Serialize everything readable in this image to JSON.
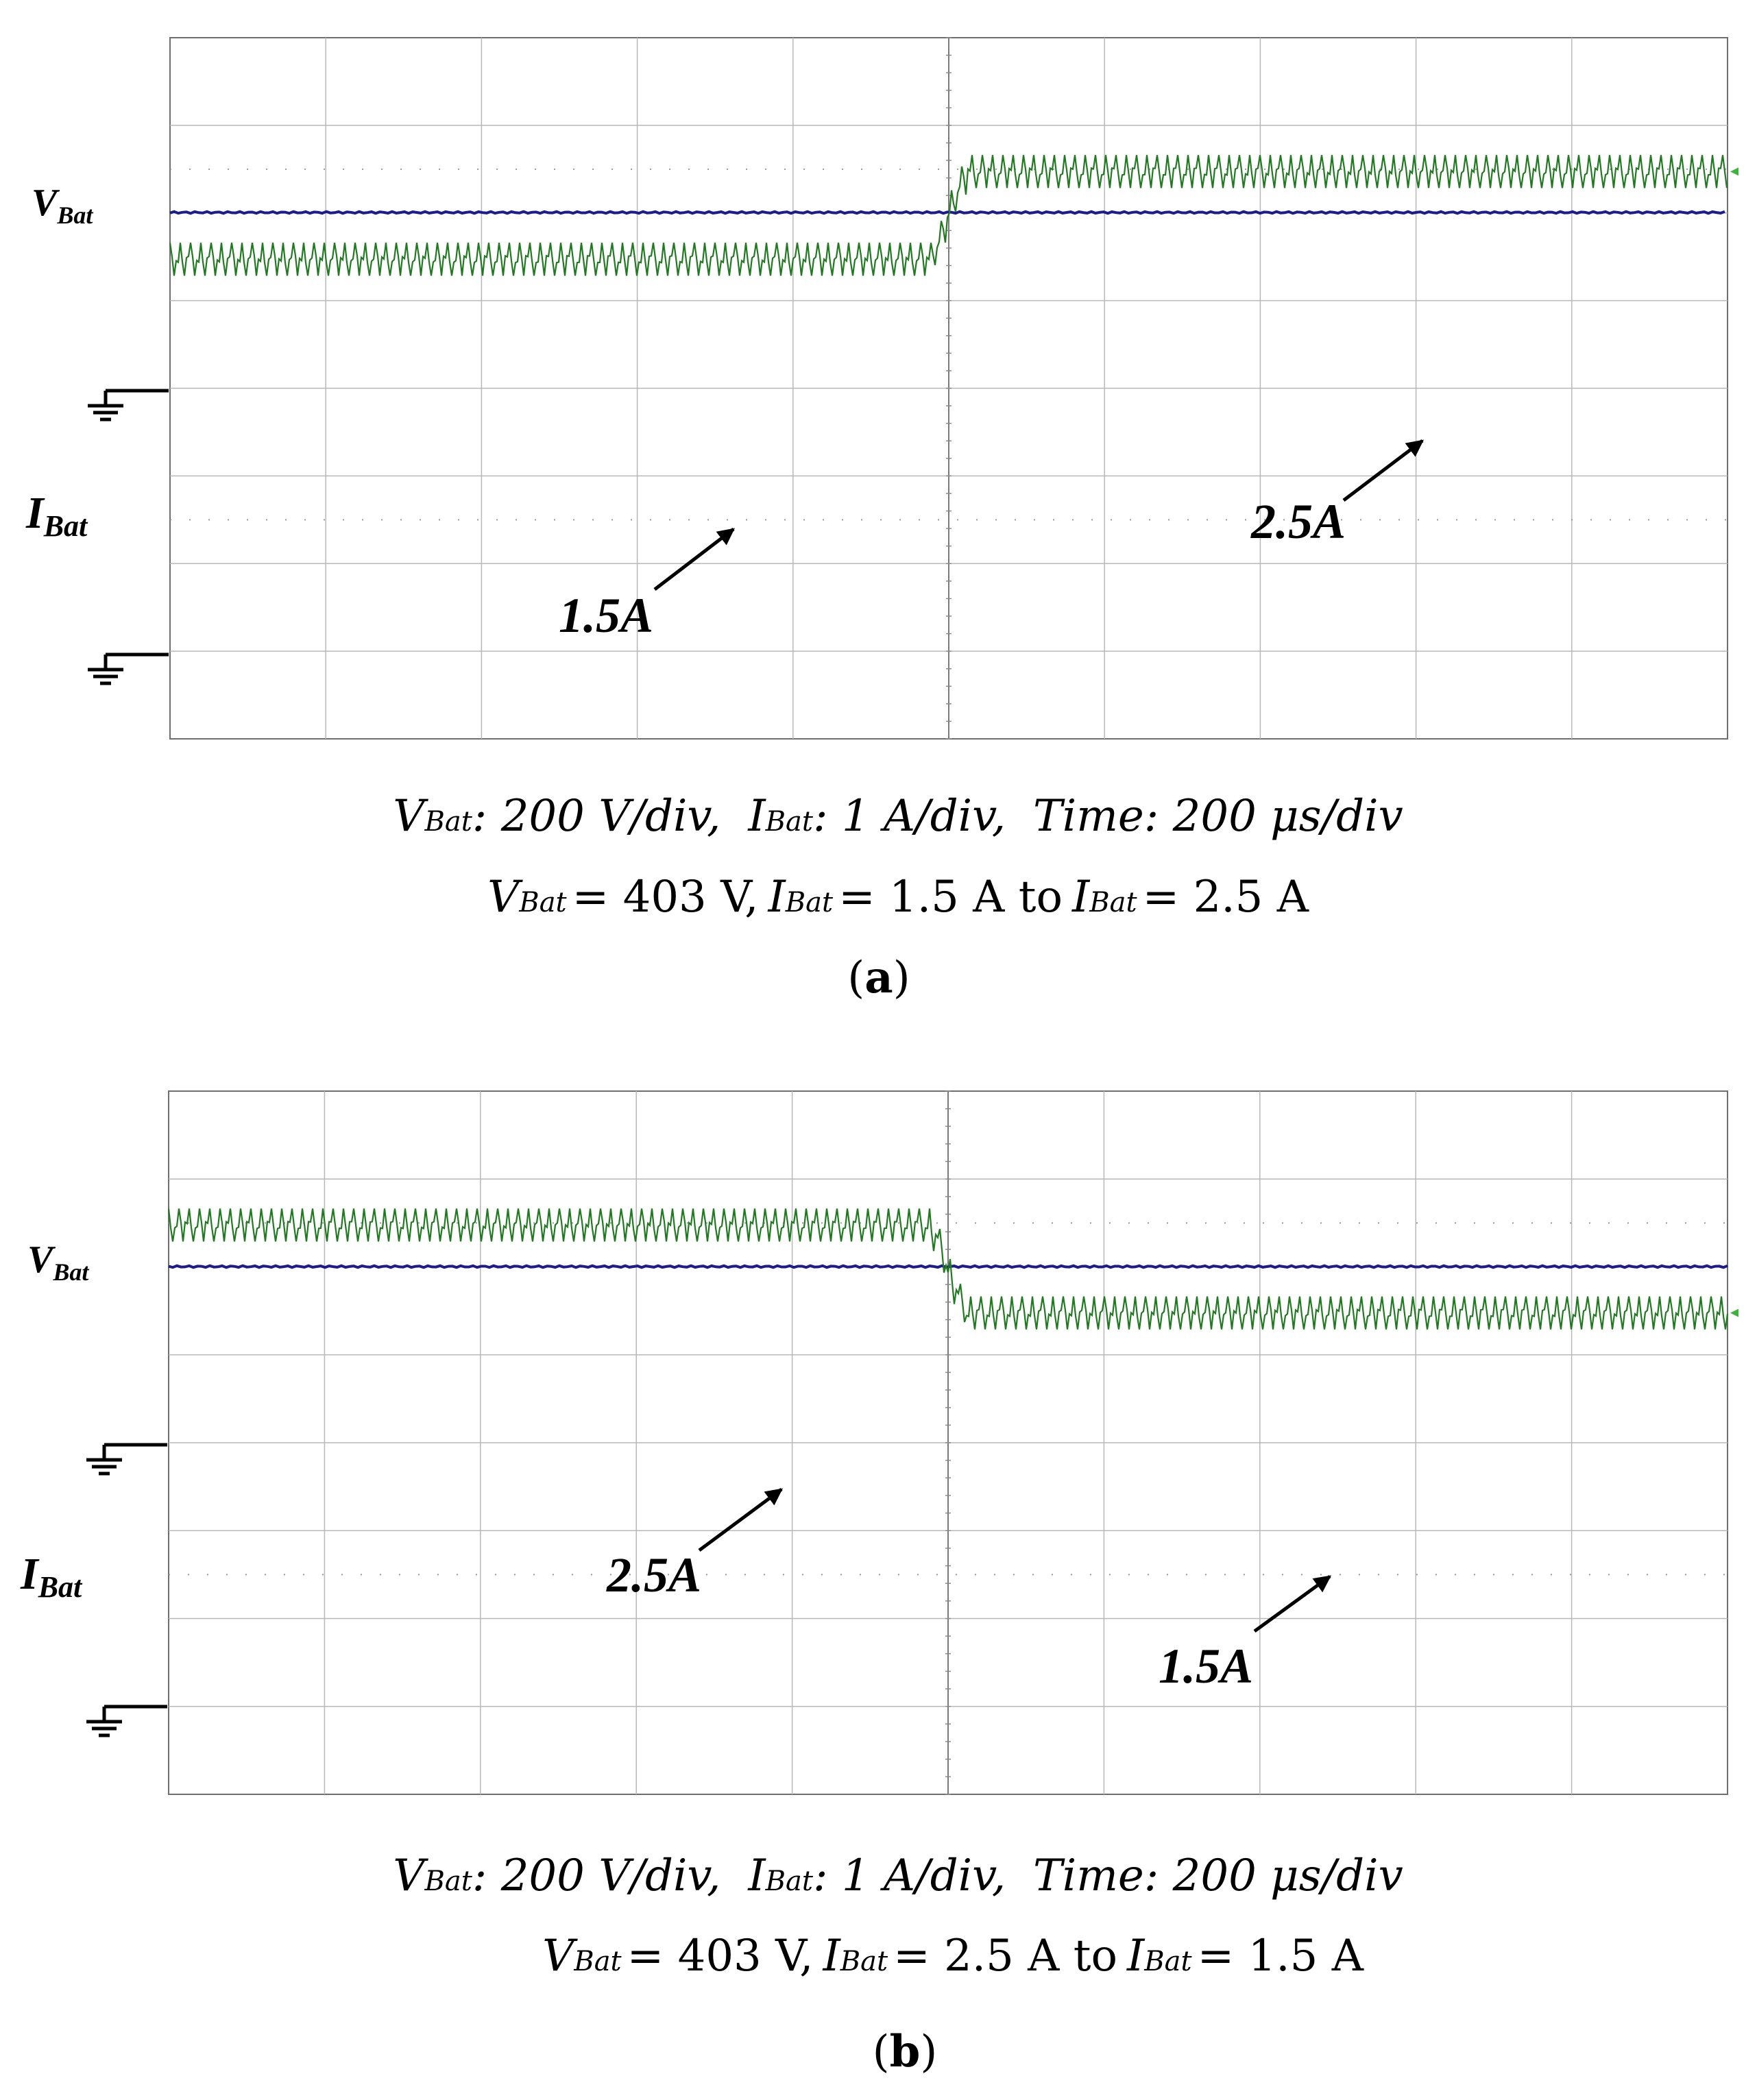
{
  "chart_data": [
    {
      "type": "line",
      "panel_label": "a",
      "channels": [
        {
          "name": "V",
          "sub": "Bat",
          "color": "#1c1c8c",
          "value": 403,
          "unit": "V",
          "scale": "200 V/div"
        },
        {
          "name": "I",
          "sub": "Bat",
          "color": "#217a21",
          "unit": "A",
          "scale": "1 A/div"
        }
      ],
      "divisions": {
        "x": 10,
        "y": 8
      },
      "time_div": "200 μs/div",
      "current_series": {
        "before": 1.5,
        "after": 2.5,
        "step_time_div": 5
      },
      "annotations": [
        {
          "label": "1.5A",
          "target": "before"
        },
        {
          "label": "2.5A",
          "target": "after"
        }
      ],
      "scale_line": {
        "v_name": "V",
        "v_sub": "Bat",
        "v_text": ": 200 V/div,",
        "i_name": "I",
        "i_sub": "Bat",
        "i_text": ": 1 A/div,",
        "time_text": "Time: 200 μs/div"
      },
      "condition_line": {
        "v_eq": "= 403 V,",
        "i1_eq": "= 1.5 A to",
        "i2_eq": "= 2.5 A"
      },
      "caption": {
        "open": "(",
        "letter": "a",
        "close": ")"
      }
    },
    {
      "type": "line",
      "panel_label": "b",
      "channels": [
        {
          "name": "V",
          "sub": "Bat",
          "color": "#1c1c8c",
          "value": 403,
          "unit": "V",
          "scale": "200 V/div"
        },
        {
          "name": "I",
          "sub": "Bat",
          "color": "#217a21",
          "unit": "A",
          "scale": "1 A/div"
        }
      ],
      "divisions": {
        "x": 10,
        "y": 8
      },
      "time_div": "200 μs/div",
      "current_series": {
        "before": 2.5,
        "after": 1.5,
        "step_time_div": 5
      },
      "annotations": [
        {
          "label": "2.5A",
          "target": "before"
        },
        {
          "label": "1.5A",
          "target": "after"
        }
      ],
      "scale_line": {
        "v_name": "V",
        "v_sub": "Bat",
        "v_text": ": 200 V/div,",
        "i_name": "I",
        "i_sub": "Bat",
        "i_text": ": 1 A/div,",
        "time_text": "Time: 200 μs/div"
      },
      "condition_line": {
        "v_eq": "= 403 V,",
        "i1_eq": "= 2.5 A to",
        "i2_eq": "= 1.5 A"
      },
      "caption": {
        "open": "(",
        "letter": "b",
        "close": ")"
      }
    }
  ]
}
